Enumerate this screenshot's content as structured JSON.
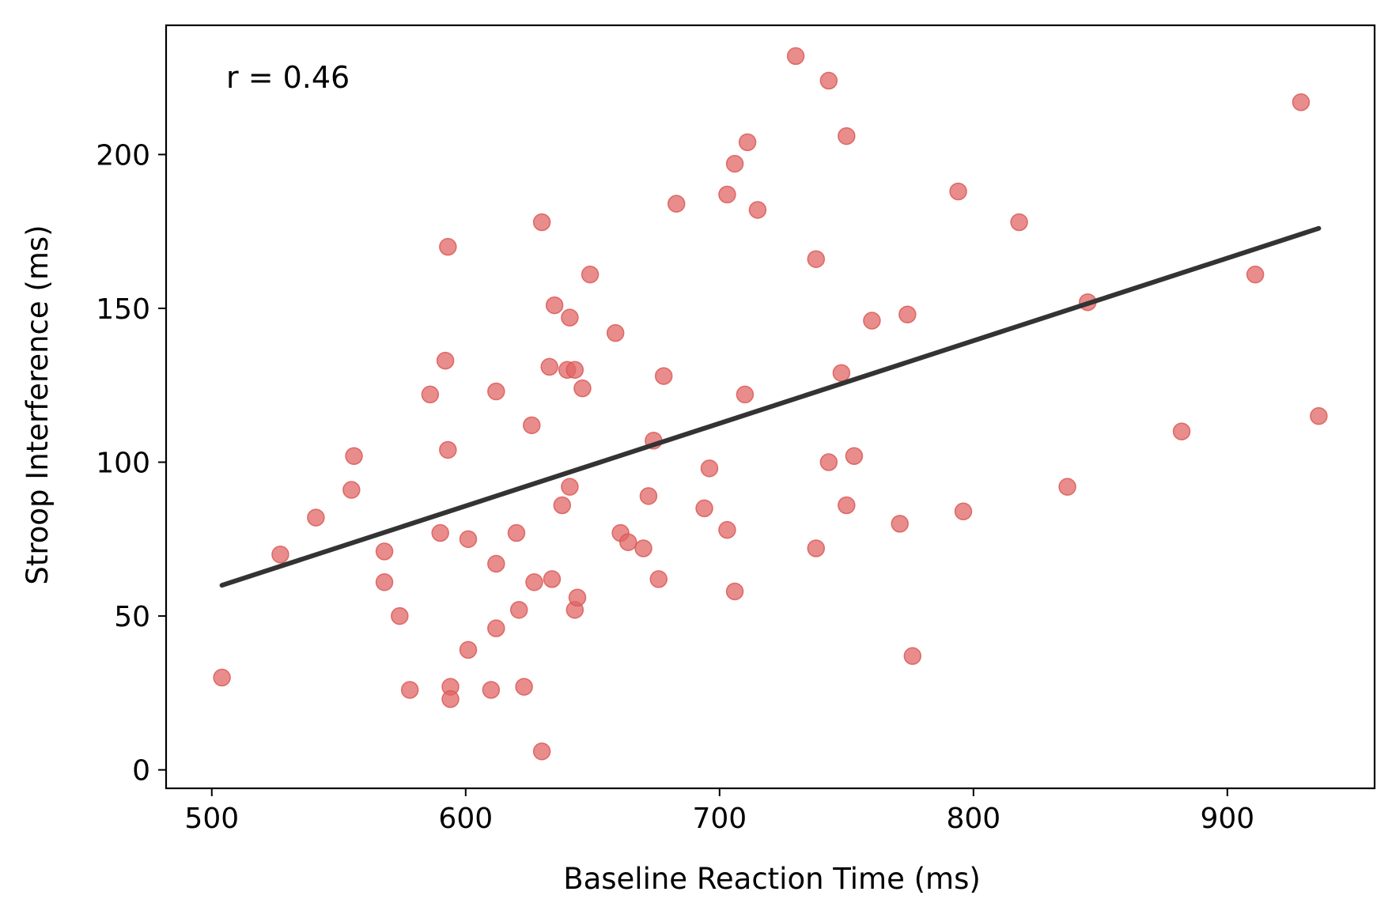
{
  "chart_data": {
    "type": "scatter",
    "title": "",
    "xlabel": "Baseline Reaction Time (ms)",
    "ylabel": "Stroop Interference (ms)",
    "xlim": [
      482,
      958
    ],
    "ylim": [
      -6,
      242
    ],
    "xticks": [
      500,
      600,
      700,
      800,
      900
    ],
    "yticks": [
      0,
      50,
      100,
      150,
      200
    ],
    "annotation": "r = 0.46",
    "grid": false,
    "legend": "none",
    "colors": {
      "points": "#e06666",
      "point_edge": "#d9534f",
      "trend": "#333333",
      "axes": "#000000"
    },
    "trend_line": {
      "x": [
        504,
        936
      ],
      "y": [
        60,
        176
      ]
    },
    "series": [
      {
        "points": [
          [
            504,
            30
          ],
          [
            527,
            70
          ],
          [
            541,
            82
          ],
          [
            555,
            91
          ],
          [
            556,
            102
          ],
          [
            568,
            71
          ],
          [
            568,
            61
          ],
          [
            574,
            50
          ],
          [
            578,
            26
          ],
          [
            586,
            122
          ],
          [
            590,
            77
          ],
          [
            592,
            133
          ],
          [
            593,
            170
          ],
          [
            593,
            104
          ],
          [
            594,
            27
          ],
          [
            594,
            23
          ],
          [
            601,
            39
          ],
          [
            601,
            75
          ],
          [
            610,
            26
          ],
          [
            612,
            67
          ],
          [
            612,
            46
          ],
          [
            612,
            123
          ],
          [
            620,
            77
          ],
          [
            621,
            52
          ],
          [
            623,
            27
          ],
          [
            626,
            112
          ],
          [
            627,
            61
          ],
          [
            630,
            178
          ],
          [
            630,
            6
          ],
          [
            633,
            131
          ],
          [
            634,
            62
          ],
          [
            635,
            151
          ],
          [
            638,
            86
          ],
          [
            640,
            130
          ],
          [
            643,
            130
          ],
          [
            641,
            92
          ],
          [
            641,
            147
          ],
          [
            643,
            52
          ],
          [
            644,
            56
          ],
          [
            646,
            124
          ],
          [
            649,
            161
          ],
          [
            659,
            142
          ],
          [
            661,
            77
          ],
          [
            664,
            74
          ],
          [
            670,
            72
          ],
          [
            672,
            89
          ],
          [
            674,
            107
          ],
          [
            676,
            62
          ],
          [
            678,
            128
          ],
          [
            683,
            184
          ],
          [
            694,
            85
          ],
          [
            696,
            98
          ],
          [
            703,
            187
          ],
          [
            703,
            78
          ],
          [
            706,
            58
          ],
          [
            706,
            197
          ],
          [
            710,
            122
          ],
          [
            711,
            204
          ],
          [
            715,
            182
          ],
          [
            730,
            232
          ],
          [
            738,
            166
          ],
          [
            738,
            72
          ],
          [
            743,
            224
          ],
          [
            743,
            100
          ],
          [
            748,
            129
          ],
          [
            750,
            86
          ],
          [
            750,
            206
          ],
          [
            753,
            102
          ],
          [
            760,
            146
          ],
          [
            771,
            80
          ],
          [
            774,
            148
          ],
          [
            776,
            37
          ],
          [
            794,
            188
          ],
          [
            796,
            84
          ],
          [
            818,
            178
          ],
          [
            837,
            92
          ],
          [
            845,
            152
          ],
          [
            882,
            110
          ],
          [
            911,
            161
          ],
          [
            929,
            217
          ],
          [
            936,
            115
          ]
        ]
      }
    ]
  }
}
